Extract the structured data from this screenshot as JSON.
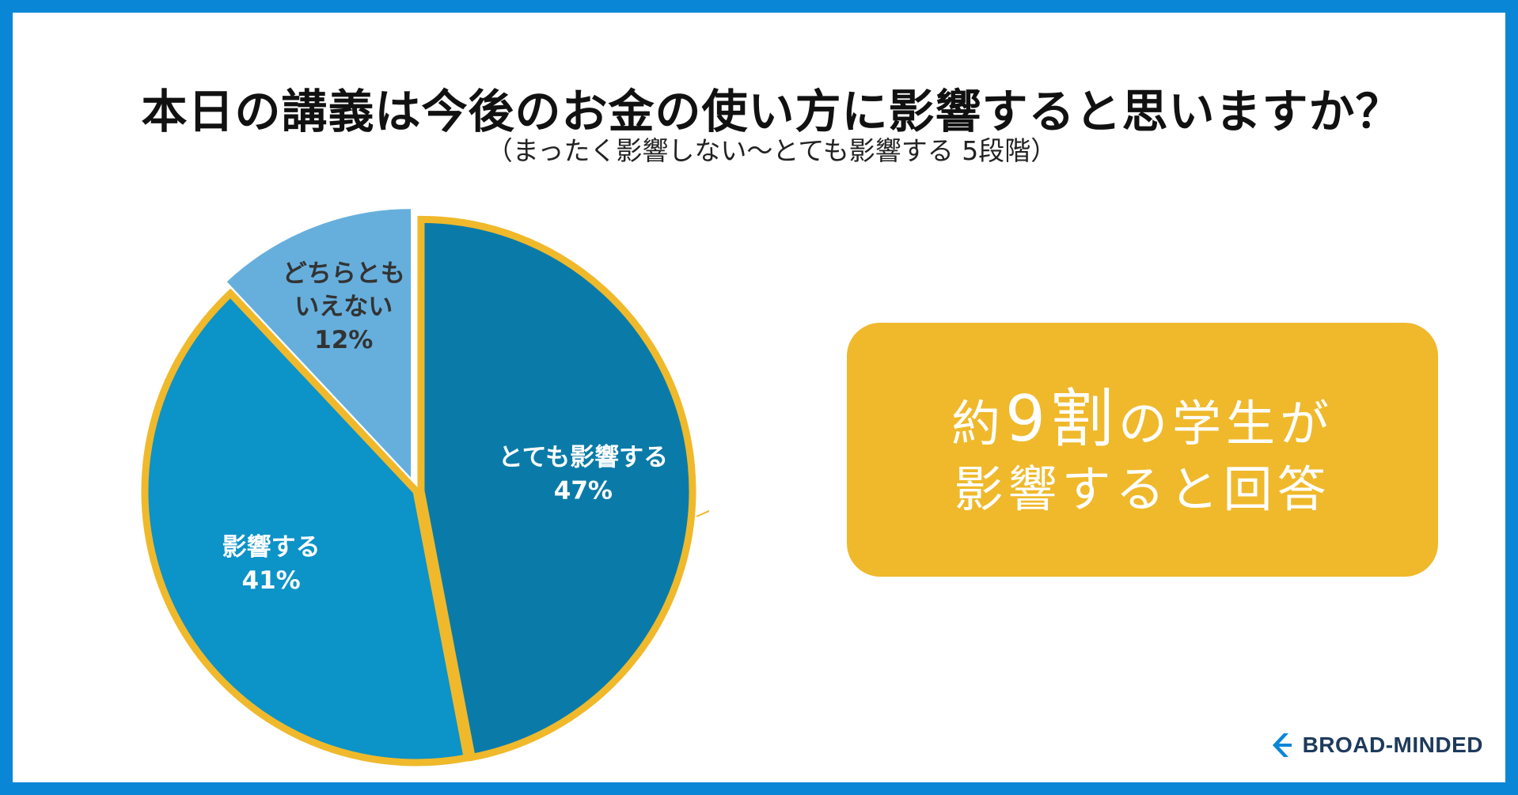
{
  "title": "本日の講義は今後のお金の使い方に影響すると思いますか？",
  "subtitle": "（まったく影響しない～とても影響する 5段階）",
  "chart_data": {
    "type": "pie",
    "categories": [
      "とても影響する",
      "影響する",
      "どちらともいえない"
    ],
    "values": [
      47,
      41,
      12
    ],
    "value_labels": [
      "47%",
      "41%",
      "12%"
    ],
    "label_lines": [
      [
        "とても影響する"
      ],
      [
        "影響する"
      ],
      [
        "どちらとも",
        "いえない"
      ]
    ],
    "colors": [
      "#0a7ba8",
      "#0c93c8",
      "#66afdd"
    ],
    "outline_color": "#efb92b",
    "label_colors": [
      "#ffffff",
      "#ffffff",
      "#333333"
    ]
  },
  "callout": {
    "line1": {
      "pre": "約",
      "big": "9",
      "mid": "割",
      "post": "の学生が"
    },
    "line2": "影響すると回答",
    "background": "#efb92b"
  },
  "logo": {
    "text": "BROAD-MINDED",
    "color": "#1e3a5c"
  }
}
